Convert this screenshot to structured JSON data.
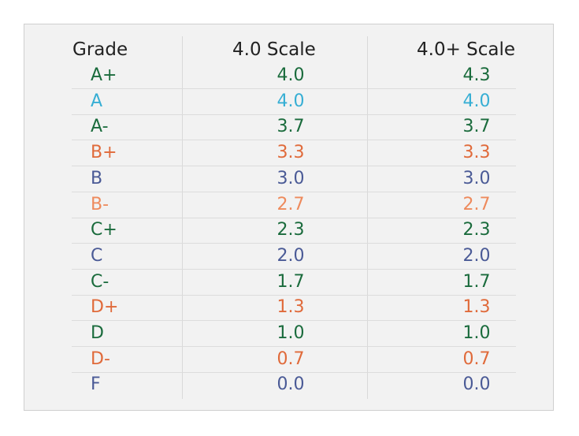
{
  "table": {
    "headers": {
      "grade": "Grade",
      "scale1": "4.0 Scale",
      "scale2": "4.0+ Scale"
    },
    "rows": [
      {
        "grade": "A+",
        "scale1": "4.0",
        "scale2": "4.3",
        "color": "#1a6b3c"
      },
      {
        "grade": "A",
        "scale1": "4.0",
        "scale2": "4.0",
        "color": "#36aed4"
      },
      {
        "grade": "A-",
        "scale1": "3.7",
        "scale2": "3.7",
        "color": "#1a6b3c"
      },
      {
        "grade": "B+",
        "scale1": "3.3",
        "scale2": "3.3",
        "color": "#e06a3a"
      },
      {
        "grade": "B",
        "scale1": "3.0",
        "scale2": "3.0",
        "color": "#4a5a96"
      },
      {
        "grade": "B-",
        "scale1": "2.7",
        "scale2": "2.7",
        "color": "#ee8a5c"
      },
      {
        "grade": "C+",
        "scale1": "2.3",
        "scale2": "2.3",
        "color": "#1a6b3c"
      },
      {
        "grade": "C",
        "scale1": "2.0",
        "scale2": "2.0",
        "color": "#4a5a96"
      },
      {
        "grade": "C-",
        "scale1": "1.7",
        "scale2": "1.7",
        "color": "#1a6b3c"
      },
      {
        "grade": "D+",
        "scale1": "1.3",
        "scale2": "1.3",
        "color": "#e06a3a"
      },
      {
        "grade": "D",
        "scale1": "1.0",
        "scale2": "1.0",
        "color": "#1a6b3c"
      },
      {
        "grade": "D-",
        "scale1": "0.7",
        "scale2": "0.7",
        "color": "#e06a3a"
      },
      {
        "grade": "F",
        "scale1": "0.0",
        "scale2": "0.0",
        "color": "#4a5a96"
      }
    ]
  }
}
